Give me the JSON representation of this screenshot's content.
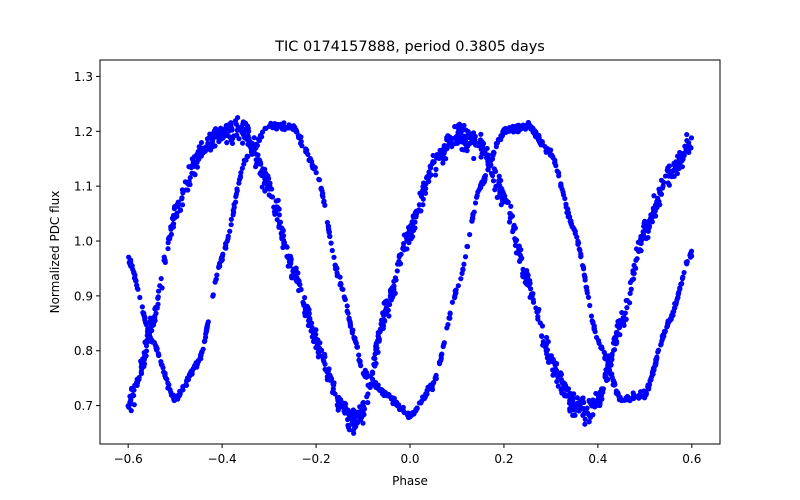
{
  "chart_data": {
    "type": "scatter",
    "title": "TIC 0174157888, period 0.3805 days",
    "xlabel": "Phase",
    "ylabel": "Normalized PDC flux",
    "xlim": [
      -0.66,
      0.66
    ],
    "ylim": [
      0.63,
      1.33
    ],
    "xticks": [
      -0.6,
      -0.4,
      -0.2,
      0.0,
      0.2,
      0.4,
      0.6
    ],
    "xtick_labels": [
      "−0.6",
      "−0.4",
      "−0.2",
      "0.0",
      "0.2",
      "0.4",
      "0.6"
    ],
    "yticks": [
      0.7,
      0.8,
      0.9,
      1.0,
      1.1,
      1.2,
      1.3
    ],
    "ytick_labels": [
      "0.7",
      "0.8",
      "0.9",
      "1.0",
      "1.1",
      "1.2",
      "1.3"
    ],
    "grid": false,
    "marker_color": "#0000ff",
    "period_days": 0.3805,
    "curves": [
      {
        "x": [
          -0.6,
          -0.55,
          -0.5,
          -0.45,
          -0.4,
          -0.35,
          -0.3,
          -0.25,
          -0.2,
          -0.15,
          -0.12,
          -0.1,
          -0.05,
          0.0,
          0.05,
          0.1,
          0.15,
          0.2,
          0.25,
          0.3,
          0.35,
          0.4,
          0.45,
          0.5,
          0.55,
          0.6
        ],
        "y": [
          0.97,
          0.82,
          0.71,
          0.78,
          0.97,
          1.15,
          1.21,
          1.21,
          1.13,
          0.93,
          0.83,
          0.76,
          0.72,
          0.68,
          0.74,
          0.91,
          1.1,
          1.2,
          1.21,
          1.16,
          1.02,
          0.82,
          0.71,
          0.72,
          0.85,
          0.98
        ],
        "scatter": 0.006
      },
      {
        "x": [
          -0.6,
          -0.58,
          -0.55,
          -0.5,
          -0.45,
          -0.4,
          -0.35,
          -0.3,
          -0.25,
          -0.2,
          -0.15,
          -0.12,
          -0.1,
          -0.05,
          0.0,
          0.05,
          0.1,
          0.15,
          0.2,
          0.25,
          0.3,
          0.35,
          0.38,
          0.4,
          0.45,
          0.5,
          0.55,
          0.6
        ],
        "y": [
          0.7,
          0.74,
          0.85,
          1.05,
          1.16,
          1.2,
          1.2,
          1.1,
          0.95,
          0.82,
          0.7,
          0.67,
          0.69,
          0.88,
          1.02,
          1.14,
          1.19,
          1.18,
          1.08,
          0.93,
          0.78,
          0.7,
          0.69,
          0.71,
          0.85,
          1.02,
          1.12,
          1.18
        ],
        "scatter": 0.02
      }
    ]
  }
}
